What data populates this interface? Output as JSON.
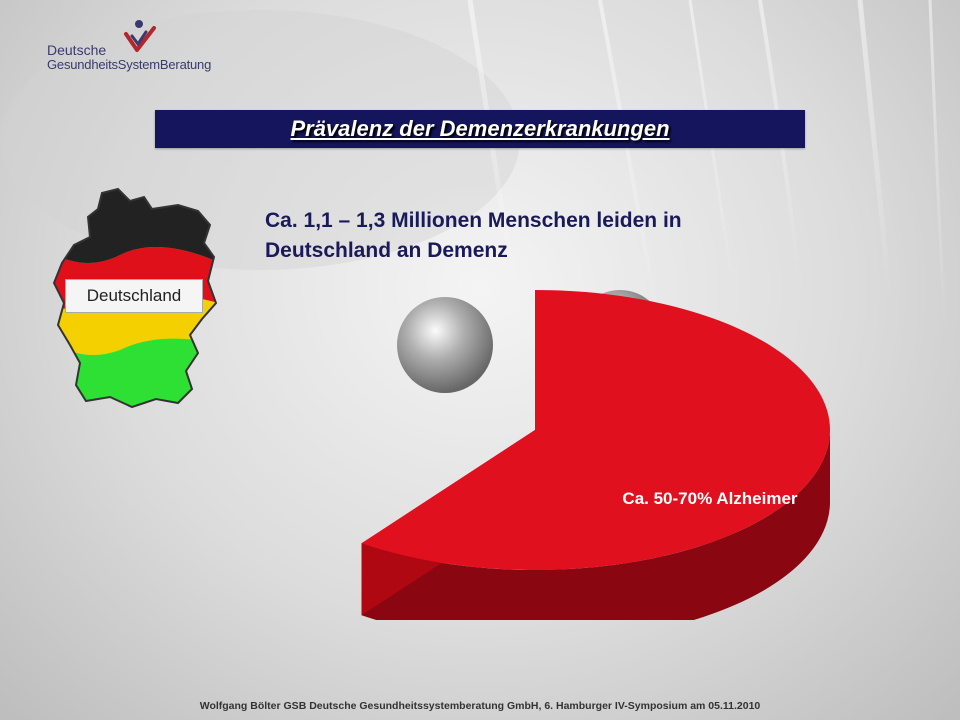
{
  "header": {
    "logo_line1": "Deutsche",
    "logo_line2": "GesundheitsSystemBeratung",
    "logo_icon": "checkmark-figure-icon",
    "colors": {
      "logo_text": "#3a3a6e",
      "logo_check": "#b3262b"
    }
  },
  "title": "Prävalenz der Demenzerkrankungen",
  "subtitle": "Ca. 1,1 – 1,3 Millionen Menschen leiden in Deutschland an Demenz",
  "map": {
    "label": "Deutschland",
    "stripe_colors": [
      "#222222",
      "#e0101a",
      "#f5d000",
      "#2ee033"
    ]
  },
  "chart_data": {
    "type": "pie",
    "style": "3d",
    "slices": [
      {
        "label": "Ca. 50-70% Alzheimer",
        "value": 60,
        "color": "#e0101f"
      }
    ]
  },
  "colors": {
    "title_bar": "#15155e",
    "subtitle_text": "#1a1a5a",
    "pie_top": "#e0101f",
    "pie_side": "#8a0610"
  },
  "footer": "Wolfgang Bölter GSB Deutsche Gesundheitssystemberatung GmbH, 6. Hamburger IV-Symposium am 05.11.2010"
}
